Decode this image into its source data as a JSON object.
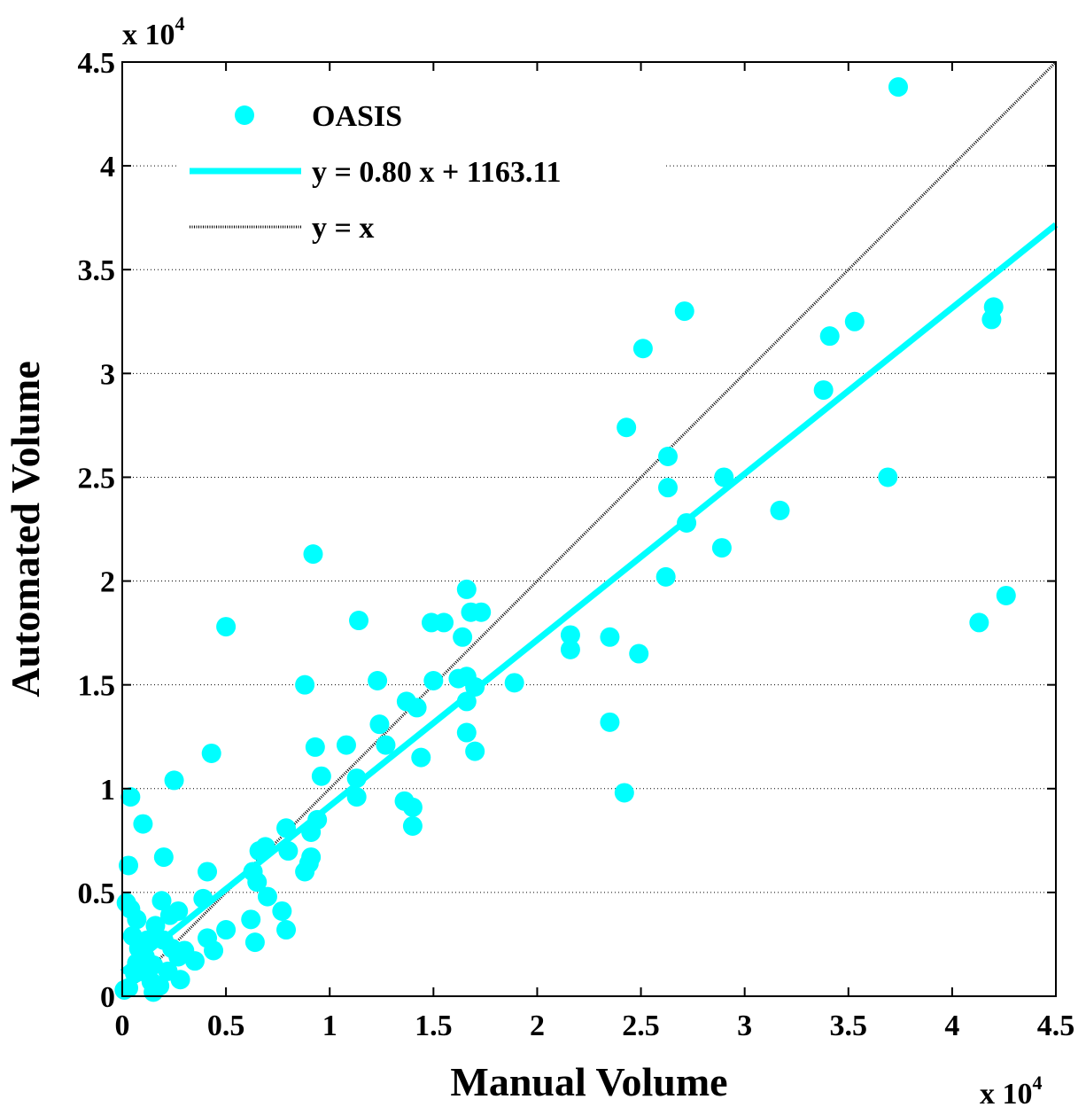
{
  "chart_data": {
    "type": "scatter",
    "xlabel": "Manual Volume",
    "ylabel": "Automated Volume",
    "xlim": [
      0,
      45000
    ],
    "ylim": [
      0,
      45000
    ],
    "grid": "horizontal dotted",
    "legend_position": "top-left",
    "x_multiplier": {
      "base": "x 10",
      "exp": "4"
    },
    "y_multiplier": {
      "base": "x 10",
      "exp": "4"
    },
    "x_ticks": [
      "0",
      "0.5",
      "1",
      "1.5",
      "2",
      "2.5",
      "3",
      "3.5",
      "4",
      "4.5"
    ],
    "y_ticks": [
      "0",
      "0.5",
      "1",
      "1.5",
      "2",
      "2.5",
      "3",
      "3.5",
      "4",
      "4.5"
    ],
    "tick_values": [
      0,
      5000,
      10000,
      15000,
      20000,
      25000,
      30000,
      35000,
      40000,
      45000
    ],
    "legend": [
      {
        "label": "OASIS",
        "kind": "marker"
      },
      {
        "label": "y = 0.80 x + 1163.11",
        "kind": "line"
      },
      {
        "label": "y = x",
        "kind": "dotted-line"
      }
    ],
    "colors": {
      "points": "#00ffff",
      "fit": "#00ffff",
      "identity": "#000000",
      "grid": "#000000"
    },
    "fit": {
      "slope": 0.8,
      "intercept": 1163.11
    },
    "series": [
      {
        "name": "OASIS",
        "points": [
          [
            37400,
            43800
          ],
          [
            42000,
            33200
          ],
          [
            41900,
            32600
          ],
          [
            35300,
            32500
          ],
          [
            34100,
            31800
          ],
          [
            33800,
            29200
          ],
          [
            27100,
            33000
          ],
          [
            25100,
            31200
          ],
          [
            24300,
            27400
          ],
          [
            26300,
            26000
          ],
          [
            26300,
            24500
          ],
          [
            27200,
            22800
          ],
          [
            26200,
            20200
          ],
          [
            29000,
            25000
          ],
          [
            28900,
            21600
          ],
          [
            31700,
            23400
          ],
          [
            36900,
            25000
          ],
          [
            42600,
            19300
          ],
          [
            41300,
            18000
          ],
          [
            23500,
            17300
          ],
          [
            24900,
            16500
          ],
          [
            23500,
            13200
          ],
          [
            24200,
            9800
          ],
          [
            21600,
            17400
          ],
          [
            21600,
            16700
          ],
          [
            18900,
            15100
          ],
          [
            16600,
            19600
          ],
          [
            16800,
            18500
          ],
          [
            17300,
            18500
          ],
          [
            16400,
            17300
          ],
          [
            15500,
            18000
          ],
          [
            14900,
            18000
          ],
          [
            15000,
            15200
          ],
          [
            16200,
            15300
          ],
          [
            16600,
            15400
          ],
          [
            17000,
            14900
          ],
          [
            16600,
            14200
          ],
          [
            16600,
            12700
          ],
          [
            17000,
            11800
          ],
          [
            13700,
            14200
          ],
          [
            14200,
            13900
          ],
          [
            12300,
            15200
          ],
          [
            12400,
            13100
          ],
          [
            12700,
            12100
          ],
          [
            14400,
            11500
          ],
          [
            13600,
            9400
          ],
          [
            14000,
            9100
          ],
          [
            14000,
            8200
          ],
          [
            11400,
            18100
          ],
          [
            10800,
            12100
          ],
          [
            11300,
            10500
          ],
          [
            11300,
            9600
          ],
          [
            9600,
            10600
          ],
          [
            9300,
            12000
          ],
          [
            8800,
            15000
          ],
          [
            9200,
            21300
          ],
          [
            9400,
            8500
          ],
          [
            9100,
            7900
          ],
          [
            9100,
            6700
          ],
          [
            9000,
            6400
          ],
          [
            8800,
            6000
          ],
          [
            7900,
            8100
          ],
          [
            8000,
            7000
          ],
          [
            7700,
            4100
          ],
          [
            7900,
            3200
          ],
          [
            6600,
            7000
          ],
          [
            6900,
            7200
          ],
          [
            6300,
            6000
          ],
          [
            6500,
            5500
          ],
          [
            7000,
            4800
          ],
          [
            6200,
            3700
          ],
          [
            6400,
            2600
          ],
          [
            5000,
            3200
          ],
          [
            5000,
            17800
          ],
          [
            4300,
            11700
          ],
          [
            2500,
            10400
          ],
          [
            4100,
            6000
          ],
          [
            3900,
            4700
          ],
          [
            4100,
            2800
          ],
          [
            4400,
            2200
          ],
          [
            3500,
            1700
          ],
          [
            2700,
            4100
          ],
          [
            2300,
            3900
          ],
          [
            2000,
            6700
          ],
          [
            1900,
            4600
          ],
          [
            2000,
            2700
          ],
          [
            2400,
            2300
          ],
          [
            2700,
            1900
          ],
          [
            2800,
            800
          ],
          [
            3000,
            2200
          ],
          [
            1000,
            8300
          ],
          [
            400,
            9600
          ],
          [
            300,
            6300
          ],
          [
            200,
            4500
          ],
          [
            400,
            4200
          ],
          [
            700,
            3700
          ],
          [
            500,
            2900
          ],
          [
            1200,
            2700
          ],
          [
            800,
            2300
          ],
          [
            1100,
            1900
          ],
          [
            1500,
            1500
          ],
          [
            1200,
            1100
          ],
          [
            1400,
            700
          ],
          [
            1500,
            200
          ],
          [
            1800,
            500
          ],
          [
            700,
            1600
          ],
          [
            300,
            400
          ],
          [
            100,
            300
          ],
          [
            600,
            1100
          ],
          [
            2200,
            1200
          ],
          [
            1600,
            3400
          ],
          [
            1000,
            2400
          ]
        ]
      }
    ]
  }
}
